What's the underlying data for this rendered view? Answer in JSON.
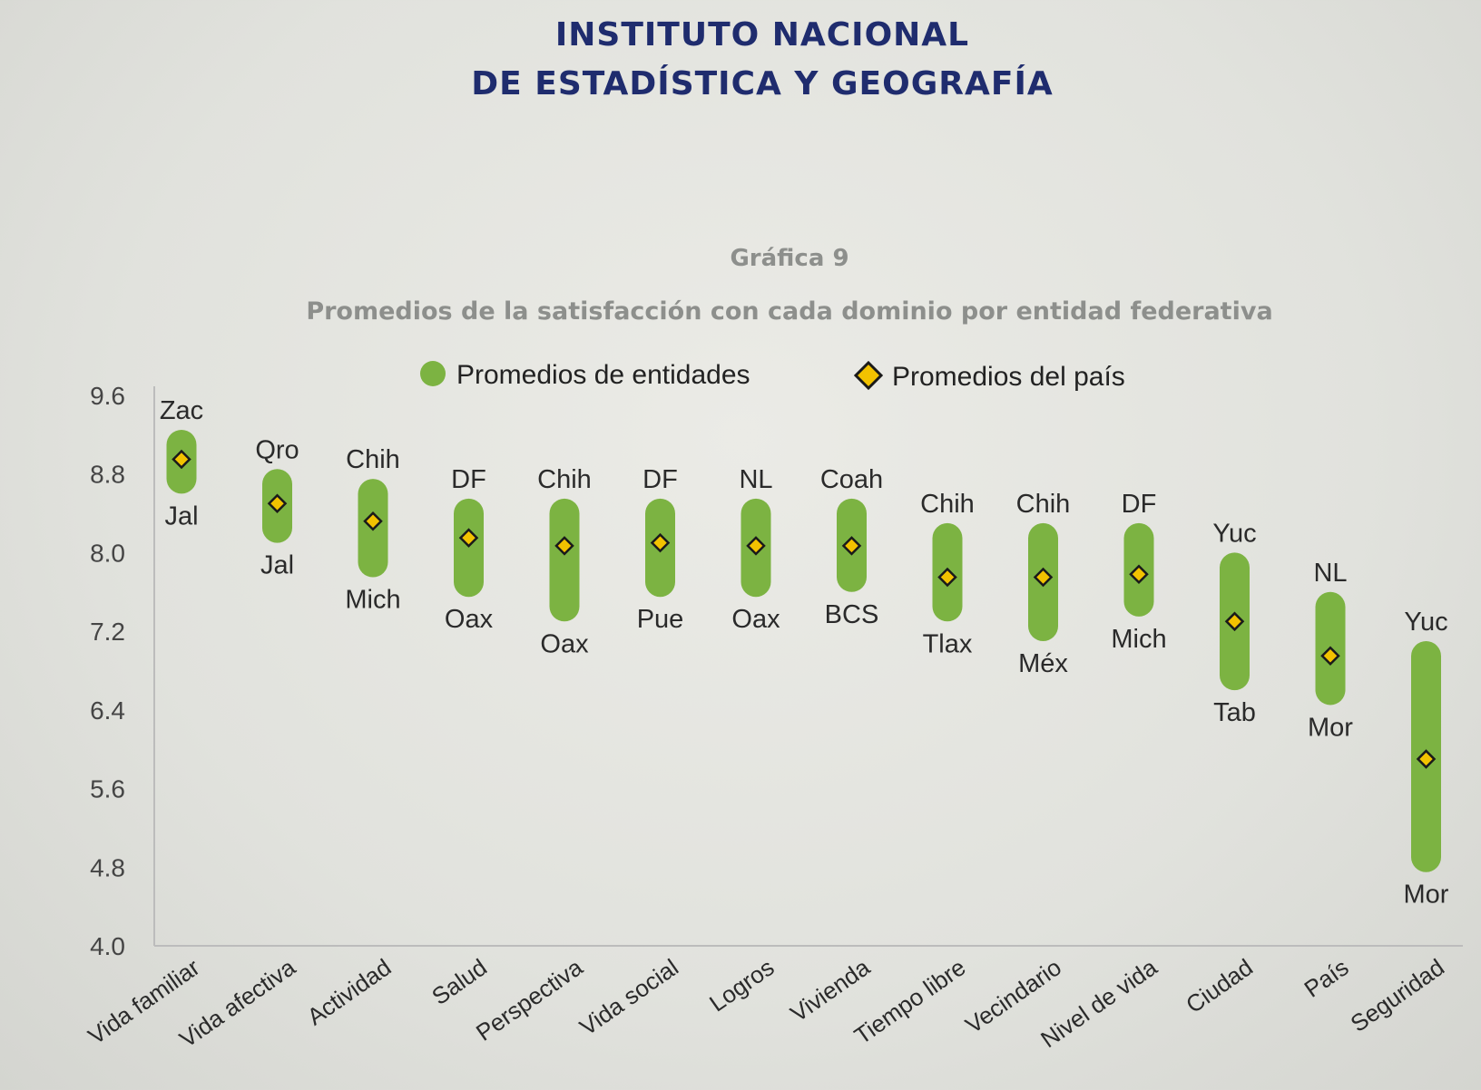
{
  "header": {
    "org_line1": "INSTITUTO NACIONAL",
    "org_line2": "DE ESTADÍSTICA Y GEOGRAFÍA"
  },
  "chart_caption": {
    "number": "Gráfica 9",
    "subtitle": "Promedios de la satisfacción con cada dominio por entidad federativa"
  },
  "colors": {
    "range_bar": "#7cb342",
    "marker_fill": "#f2c200",
    "marker_stroke": "#1a1a1a",
    "axis": "#bcbcbc"
  },
  "chart_data": {
    "type": "range",
    "title": "Promedios de la satisfacción con cada dominio por entidad federativa",
    "ylim": [
      4.0,
      9.6
    ],
    "yticks": [
      "9.6",
      "8.8",
      "8.0",
      "7.2",
      "6.4",
      "5.6",
      "4.8",
      "4.0"
    ],
    "legend": {
      "range_label": "Promedios de entidades",
      "marker_label": "Promedios del país",
      "position": "top"
    },
    "grid": false,
    "categories": [
      "Vida familiar",
      "Vida afectiva",
      "Actividad",
      "Salud",
      "Perspectiva",
      "Vida social",
      "Logros",
      "Vivienda",
      "Tiempo libre",
      "Vecindario",
      "Nivel de vida",
      "Ciudad",
      "País",
      "Seguridad"
    ],
    "series": [
      {
        "name": "Promedios de entidades",
        "high": [
          9.25,
          8.85,
          8.75,
          8.55,
          8.55,
          8.55,
          8.55,
          8.55,
          8.3,
          8.3,
          8.3,
          8.0,
          7.6,
          7.1
        ],
        "low": [
          8.6,
          8.1,
          7.75,
          7.55,
          7.3,
          7.55,
          7.55,
          7.6,
          7.3,
          7.1,
          7.35,
          6.6,
          6.45,
          4.75
        ],
        "high_labels": [
          "Zac",
          "Qro",
          "Chih",
          "DF",
          "Chih",
          "DF",
          "NL",
          "Coah",
          "Chih",
          "Chih",
          "DF",
          "Yuc",
          "NL",
          "Yuc"
        ],
        "low_labels": [
          "Jal",
          "Jal",
          "Mich",
          "Oax",
          "Oax",
          "Pue",
          "Oax",
          "BCS",
          "Tlax",
          "Méx",
          "Mich",
          "Tab",
          "Mor",
          "Mor"
        ]
      },
      {
        "name": "Promedios del país",
        "values": [
          8.95,
          8.5,
          8.32,
          8.15,
          8.07,
          8.1,
          8.07,
          8.07,
          7.75,
          7.75,
          7.78,
          7.3,
          6.95,
          5.9
        ]
      }
    ]
  }
}
